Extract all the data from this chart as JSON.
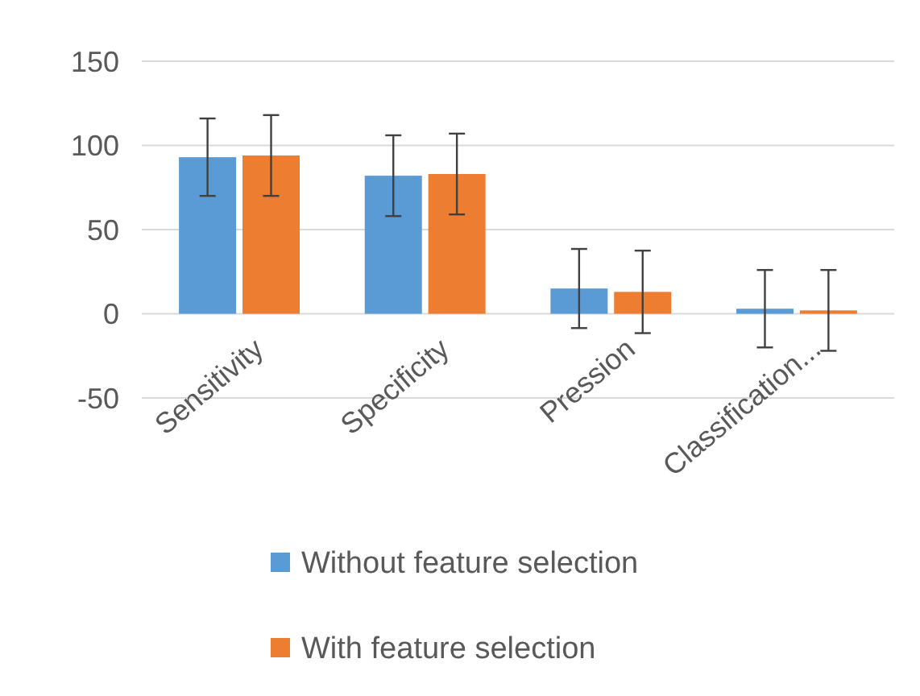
{
  "chart_data": {
    "type": "bar",
    "categories": [
      "Sensitivity",
      "Specificity",
      "Pression",
      "Classification..."
    ],
    "series": [
      {
        "name": "Without feature selection",
        "color": "#5b9bd5",
        "values": [
          93,
          82,
          15,
          3
        ],
        "errors": [
          23,
          24,
          23.5,
          23
        ]
      },
      {
        "name": "With feature selection",
        "color": "#ed7d31",
        "values": [
          94,
          83,
          13,
          2
        ],
        "errors": [
          24,
          24,
          24.5,
          24
        ]
      }
    ],
    "ylim": [
      -50,
      150
    ],
    "yticks": [
      -50,
      0,
      50,
      100,
      150
    ],
    "grid": "y",
    "legend": "bottom"
  }
}
